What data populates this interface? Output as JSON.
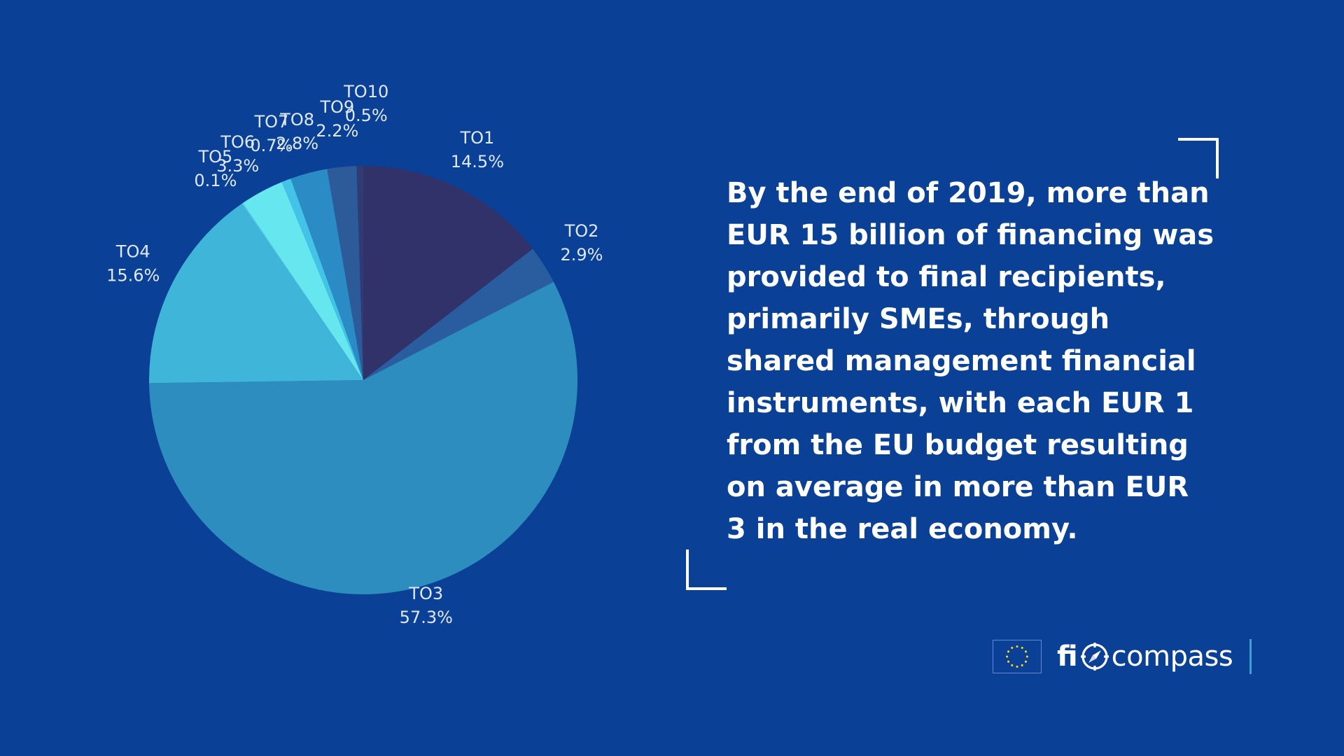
{
  "chart_data": {
    "type": "pie",
    "title": "",
    "start_angle_deg": 0,
    "direction": "clockwise",
    "slices": [
      {
        "label": "TO1",
        "value": 14.5,
        "value_label": "14.5%",
        "color": "#31326a"
      },
      {
        "label": "TO2",
        "value": 2.9,
        "value_label": "2.9%",
        "color": "#2a5d9f"
      },
      {
        "label": "TO3",
        "value": 57.3,
        "value_label": "57.3%",
        "color": "#2d8dbf"
      },
      {
        "label": "TO4",
        "value": 15.6,
        "value_label": "15.6%",
        "color": "#3fb5da"
      },
      {
        "label": "TO5",
        "value": 0.1,
        "value_label": "0.1%",
        "color": "#53c8e6"
      },
      {
        "label": "TO6",
        "value": 3.3,
        "value_label": "3.3%",
        "color": "#66e6ee"
      },
      {
        "label": "TO7",
        "value": 0.7,
        "value_label": "0.7%",
        "color": "#43c3e7"
      },
      {
        "label": "TO8",
        "value": 2.8,
        "value_label": "2.8%",
        "color": "#2b8bc4"
      },
      {
        "label": "TO9",
        "value": 2.2,
        "value_label": "2.2%",
        "color": "#2d5a98"
      },
      {
        "label": "TO10",
        "value": 0.5,
        "value_label": "0.5%",
        "color": "#303a73"
      }
    ]
  },
  "statement": {
    "text": "By the end of 2019, more than EUR 15 billion of financing was provided to final recipients, primarily SMEs, through shared management financial instruments, with each EUR 1 from the EU budget resulting on average in more than EUR 3 in the real economy."
  },
  "branding": {
    "flag_icon": "eu-flag-icon",
    "name_part1": "fi",
    "compass_icon": "compass-icon",
    "name_part2": "compass",
    "colors": {
      "background": "#0a4095",
      "accent": "#3f9fd6",
      "text": "#ffffff"
    }
  }
}
